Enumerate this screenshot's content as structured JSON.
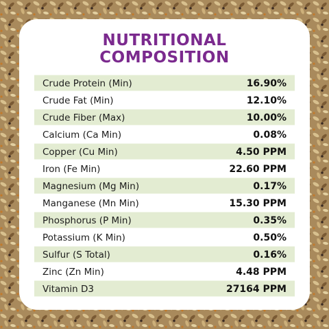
{
  "title": [
    "NUTRITIONAL",
    "COMPOSITION"
  ],
  "table": {
    "rows": [
      [
        "Crude Protein (Min)",
        "16.90%"
      ],
      [
        "Crude Fat (Min)",
        "12.10%"
      ],
      [
        "Crude Fiber (Max)",
        "10.00%"
      ],
      [
        "Calcium (Ca Min)",
        "0.08%"
      ],
      [
        "Copper (Cu Min)",
        "4.50 PPM"
      ],
      [
        "Iron (Fe Min)",
        "22.60 PPM"
      ],
      [
        "Magnesium (Mg Min)",
        "0.17%"
      ],
      [
        "Manganese (Mn Min)",
        "15.30 PPM"
      ],
      [
        "Phosphorus (P Min)",
        "0.35%"
      ],
      [
        "Potassium (K Min)",
        "0.50%"
      ],
      [
        "Sulfur (S Total)",
        "0.16%"
      ],
      [
        "Zinc (Zn Min)",
        "4.48 PPM"
      ],
      [
        "Vitamin D3",
        "27164 PPM"
      ]
    ]
  }
}
